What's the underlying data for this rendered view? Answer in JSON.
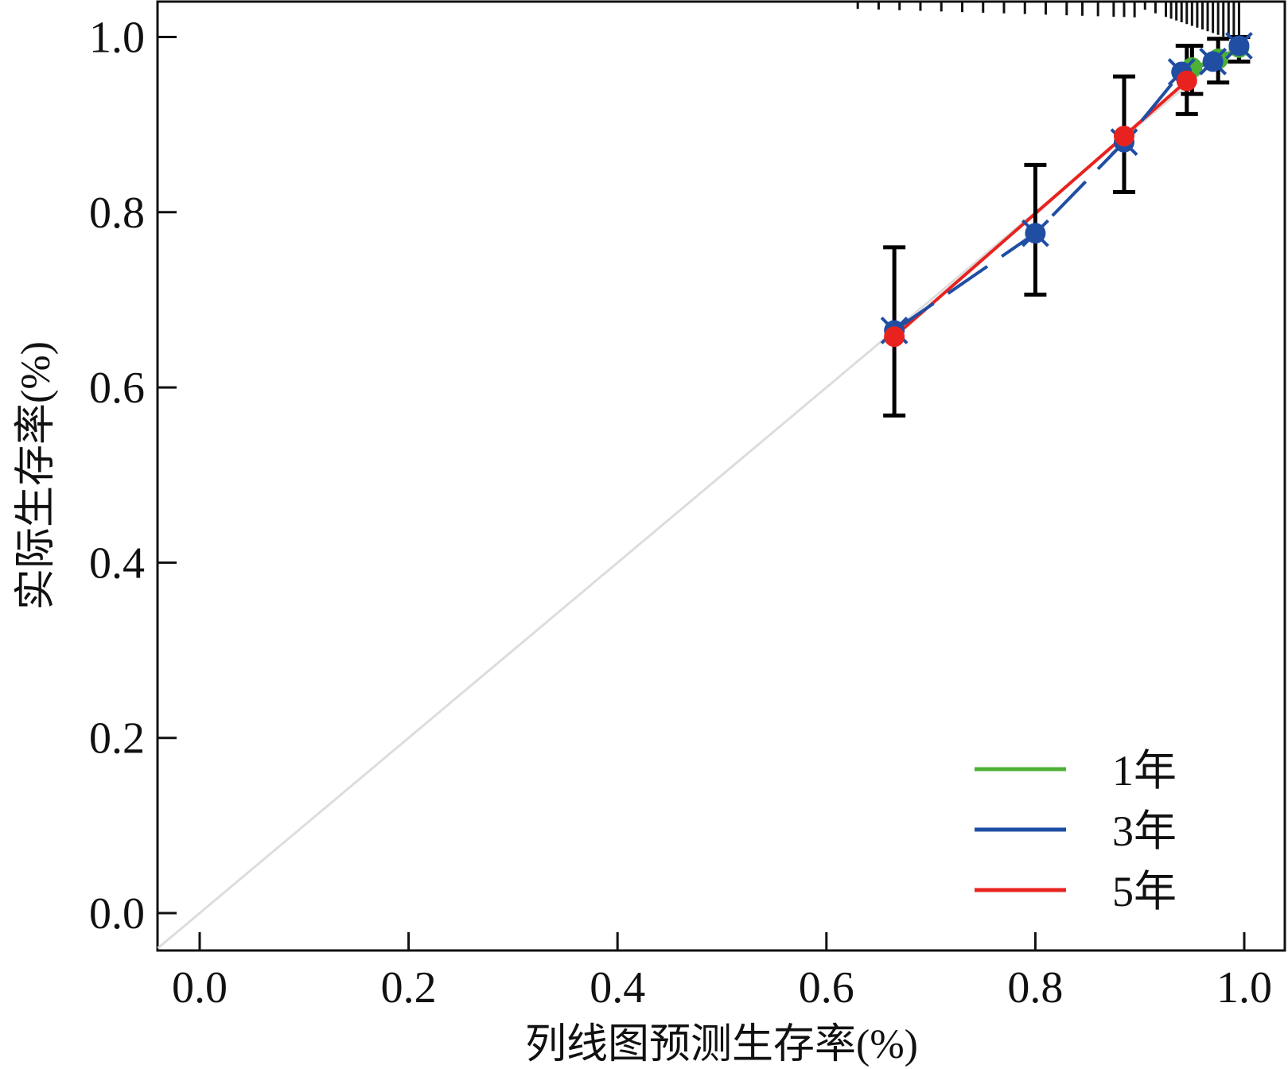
{
  "chart_data": {
    "type": "scatter",
    "title": "",
    "xlabel": "列线图预测生存率(%)",
    "ylabel": "实际生存率(%)",
    "xlim": [
      -0.04,
      1.04
    ],
    "ylim": [
      -0.04,
      1.04
    ],
    "xticks": [
      "0.0",
      "0.2",
      "0.4",
      "0.6",
      "0.8",
      "1.0"
    ],
    "yticks": [
      "0.0",
      "0.2",
      "0.4",
      "0.6",
      "0.8",
      "1.0"
    ],
    "reference_line": {
      "color": "#dddddd",
      "from": [
        -0.04,
        -0.04
      ],
      "to": [
        1.0,
        1.0
      ]
    },
    "legend_position": "bottom-right",
    "series": [
      {
        "name": "1年",
        "color": "#4cb036",
        "points": [
          [
            0.95,
            0.965
          ],
          [
            0.975,
            0.975
          ],
          [
            0.995,
            0.988
          ]
        ],
        "errors": [
          [
            0.95,
            0.935,
            0.99
          ],
          [
            0.975,
            0.948,
            0.998
          ],
          [
            0.995,
            0.972,
            1.0
          ]
        ]
      },
      {
        "name": "3年",
        "color": "#1f4ea3",
        "points": [
          [
            0.665,
            0.665
          ],
          [
            0.8,
            0.776
          ],
          [
            0.885,
            0.88
          ],
          [
            0.94,
            0.96
          ],
          [
            0.97,
            0.972
          ],
          [
            0.995,
            0.99
          ]
        ],
        "errors": [
          [
            0.8,
            0.706,
            0.854
          ]
        ]
      },
      {
        "name": "5年",
        "color": "#e8231f",
        "points": [
          [
            0.665,
            0.658
          ],
          [
            0.885,
            0.887
          ],
          [
            0.945,
            0.95
          ]
        ],
        "errors": [
          [
            0.665,
            0.568,
            0.76
          ],
          [
            0.885,
            0.823,
            0.955
          ],
          [
            0.945,
            0.912,
            0.99
          ]
        ]
      }
    ],
    "rug": [
      0.63,
      0.65,
      0.67,
      0.69,
      0.71,
      0.73,
      0.75,
      0.77,
      0.79,
      0.81,
      0.83,
      0.845,
      0.86,
      0.875,
      0.885,
      0.895,
      0.905,
      0.915,
      0.925,
      0.93,
      0.935,
      0.94,
      0.945,
      0.95,
      0.955,
      0.96,
      0.965,
      0.97,
      0.975,
      0.98,
      0.985,
      0.99,
      0.995
    ]
  }
}
